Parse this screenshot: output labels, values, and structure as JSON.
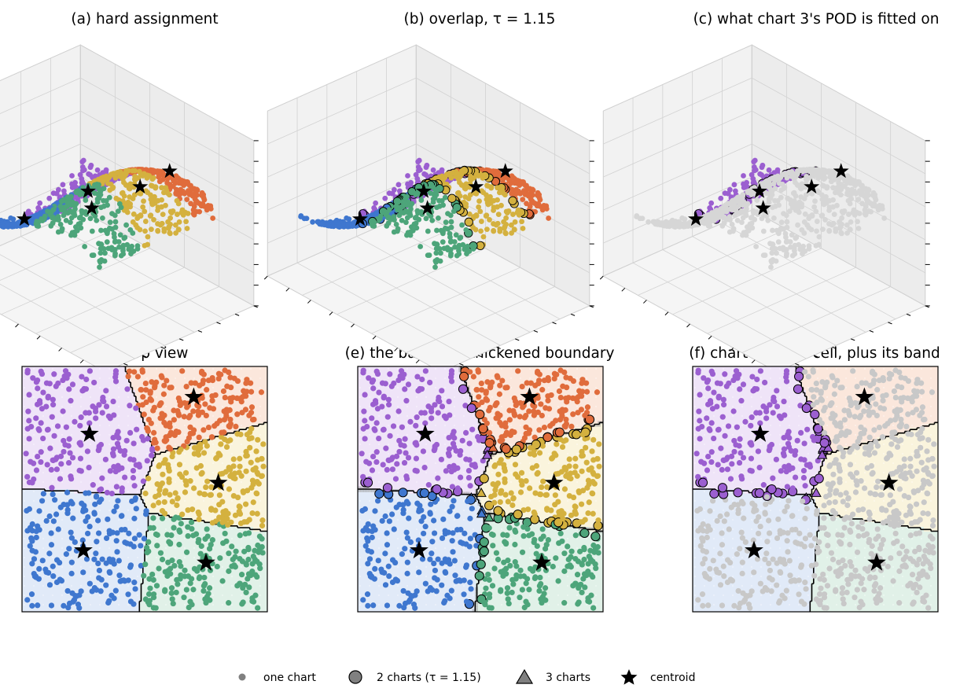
{
  "colors": {
    "chart_0": "#9b5fd0",
    "chart_1": "#e06c3c",
    "chart_2": "#d4b13f",
    "chart_3": "#3f77cf",
    "chart_4": "#4da57a",
    "grey": "#c8c8c8",
    "pane": "#f0f0f0"
  },
  "legend": {
    "one_chart": "one chart",
    "two_charts": "2 charts (τ = 1.15)",
    "three_charts": "3 charts",
    "centroid": "centroid"
  },
  "chart_data": [
    {
      "type": "scatter",
      "panel": "a",
      "title": "(a) hard assignment",
      "projection": "3d",
      "points_per_chart": [
        180,
        180,
        180,
        180,
        180
      ],
      "centroids": [
        {
          "chart": 0,
          "x": -0.45,
          "y": 0.45
        },
        {
          "chart": 1,
          "x": 0.4,
          "y": 0.75
        },
        {
          "chart": 2,
          "x": 0.6,
          "y": 0.05
        },
        {
          "chart": 3,
          "x": -0.5,
          "y": -0.5
        },
        {
          "chart": 4,
          "x": 0.5,
          "y": -0.6
        }
      ],
      "ticks_labeled": false
    },
    {
      "type": "scatter",
      "panel": "b",
      "title": "(b) overlap, τ = 1.15",
      "projection": "3d",
      "tau": 1.15,
      "ticks_labeled": false
    },
    {
      "type": "scatter",
      "panel": "c",
      "title": "(c) what chart 3's POD is fitted on",
      "projection": "3d",
      "highlight_chart": 0,
      "ticks_labeled": false
    },
    {
      "type": "scatter",
      "panel": "d",
      "title": "(d) top view",
      "xlim": [
        -1,
        1
      ],
      "ylim": [
        -1,
        1
      ],
      "ticks_labeled": false
    },
    {
      "type": "scatter",
      "panel": "e",
      "title": "(e) the band is a thickened boundary",
      "xlim": [
        -1,
        1
      ],
      "ylim": [
        -1,
        1
      ],
      "ticks_labeled": false
    },
    {
      "type": "scatter",
      "panel": "f",
      "title": "(f) chart 3's own cell, plus its band",
      "xlim": [
        -1,
        1
      ],
      "ylim": [
        -1,
        1
      ],
      "highlight_chart": 0,
      "ticks_labeled": false
    }
  ]
}
